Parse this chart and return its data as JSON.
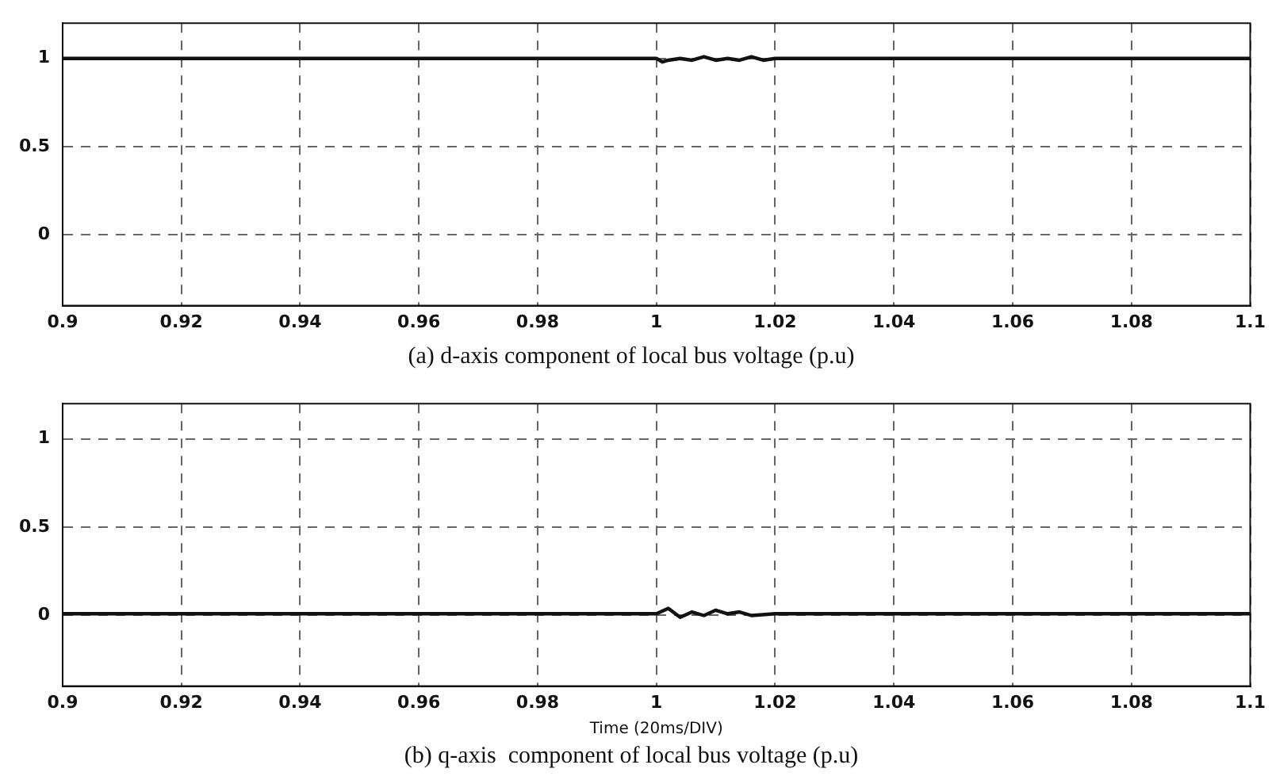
{
  "chart_data": [
    {
      "type": "line",
      "title": "(a) d-axis component of local bus voltage (p.u)",
      "x": [
        0.9,
        0.95,
        0.998,
        1.0,
        1.001,
        1.002,
        1.004,
        1.006,
        1.008,
        1.01,
        1.012,
        1.014,
        1.016,
        1.018,
        1.02,
        1.05,
        1.1
      ],
      "series": [
        {
          "color": "#111111",
          "values": [
            1,
            1,
            1,
            1,
            0.98,
            0.99,
            1,
            0.99,
            1.01,
            0.99,
            1,
            0.99,
            1.01,
            0.99,
            1,
            1,
            1
          ]
        }
      ],
      "xlim": [
        0.9,
        1.1
      ],
      "xticks": [
        0.9,
        0.92,
        0.94,
        0.96,
        0.98,
        1,
        1.02,
        1.04,
        1.06,
        1.08,
        1.1
      ],
      "ylim": [
        -0.4,
        1.2
      ],
      "yticks": [
        0,
        0.5,
        1
      ],
      "grid": true,
      "line_style": "solid",
      "marker": "none"
    },
    {
      "type": "line",
      "title": "(b) q-axis  component of local bus voltage (p.u)",
      "xlabel": "Time (20ms/DIV)",
      "x": [
        0.9,
        0.95,
        1.0,
        1.002,
        1.004,
        1.006,
        1.008,
        1.01,
        1.012,
        1.014,
        1.016,
        1.02,
        1.05,
        1.1
      ],
      "series": [
        {
          "color": "#111111",
          "values": [
            0.01,
            0.01,
            0.01,
            0.04,
            -0.01,
            0.02,
            0,
            0.03,
            0.01,
            0.02,
            0,
            0.01,
            0.01,
            0.01
          ]
        }
      ],
      "xlim": [
        0.9,
        1.1
      ],
      "xticks": [
        0.9,
        0.92,
        0.94,
        0.96,
        0.98,
        1,
        1.02,
        1.04,
        1.06,
        1.08,
        1.1
      ],
      "ylim": [
        -0.4,
        1.2
      ],
      "yticks": [
        0,
        0.5,
        1
      ],
      "grid": true,
      "line_style": "solid",
      "marker": "none"
    }
  ]
}
